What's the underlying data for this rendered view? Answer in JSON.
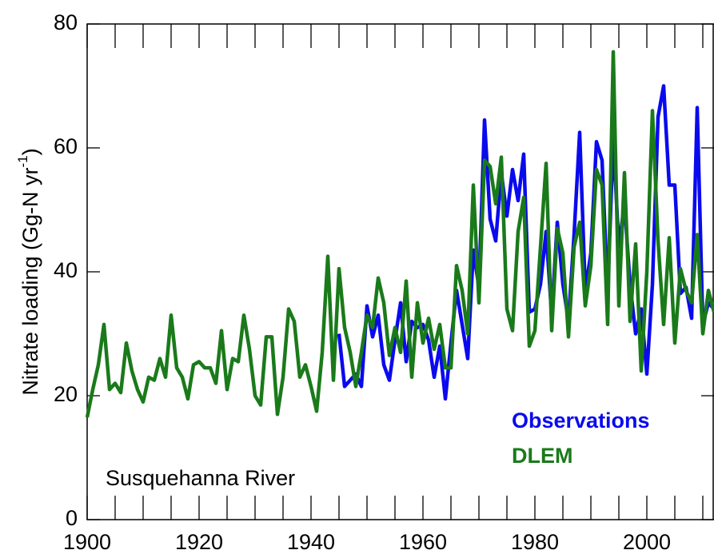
{
  "chart_data": {
    "type": "line",
    "ylabel": [
      "Nitrate loading (Gg-N yr",
      "-1",
      ")"
    ],
    "annotation": "Susquehanna River",
    "x": [
      1900,
      1901,
      1902,
      1903,
      1904,
      1905,
      1906,
      1907,
      1908,
      1909,
      1910,
      1911,
      1912,
      1913,
      1914,
      1915,
      1916,
      1917,
      1918,
      1919,
      1920,
      1921,
      1922,
      1923,
      1924,
      1925,
      1926,
      1927,
      1928,
      1929,
      1930,
      1931,
      1932,
      1933,
      1934,
      1935,
      1936,
      1937,
      1938,
      1939,
      1940,
      1941,
      1942,
      1943,
      1944,
      1945,
      1946,
      1947,
      1948,
      1949,
      1950,
      1951,
      1952,
      1953,
      1954,
      1955,
      1956,
      1957,
      1958,
      1959,
      1960,
      1961,
      1962,
      1963,
      1964,
      1965,
      1966,
      1967,
      1968,
      1969,
      1970,
      1971,
      1972,
      1973,
      1974,
      1975,
      1976,
      1977,
      1978,
      1979,
      1980,
      1981,
      1982,
      1983,
      1984,
      1985,
      1986,
      1987,
      1988,
      1989,
      1990,
      1991,
      1992,
      1993,
      1994,
      1995,
      1996,
      1997,
      1998,
      1999,
      2000,
      2001,
      2002,
      2003,
      2004,
      2005,
      2006,
      2007,
      2008,
      2009,
      2010,
      2011,
      2012
    ],
    "series": [
      {
        "name": "Observations",
        "color": "#0a0aee",
        "values": [
          null,
          null,
          null,
          null,
          null,
          null,
          null,
          null,
          null,
          null,
          null,
          null,
          null,
          null,
          null,
          null,
          null,
          null,
          null,
          null,
          null,
          null,
          null,
          null,
          null,
          null,
          null,
          null,
          null,
          null,
          null,
          null,
          null,
          null,
          null,
          null,
          null,
          null,
          null,
          null,
          null,
          null,
          null,
          null,
          null,
          30,
          21.5,
          22.5,
          23.5,
          21.5,
          34.5,
          29.5,
          33,
          25,
          22.5,
          29,
          35,
          25.5,
          32,
          31,
          31.5,
          29,
          23,
          28,
          19.5,
          28.5,
          37,
          31.5,
          26,
          43.5,
          37.5,
          64.5,
          48.5,
          45,
          56,
          49,
          56.5,
          51.5,
          59,
          33.5,
          34,
          38,
          46.5,
          33,
          48,
          38,
          32,
          46,
          62.5,
          37,
          43,
          61,
          58,
          36.5,
          61.5,
          44,
          51,
          38,
          30,
          34,
          23.5,
          38,
          65,
          70,
          54,
          54,
          36.5,
          37.5,
          32.5,
          66.5,
          31.5,
          35,
          34
        ]
      },
      {
        "name": "DLEM",
        "color": "#1a7a1a",
        "values": [
          16.5,
          21,
          25,
          31.5,
          21,
          22,
          20.5,
          28.5,
          24,
          21,
          19,
          23,
          22.5,
          26,
          23,
          33,
          24.5,
          23,
          19.5,
          25,
          25.5,
          24.5,
          24.5,
          22,
          30.5,
          21,
          26,
          25.5,
          33,
          27.5,
          20,
          18.5,
          29.5,
          29.5,
          17,
          23,
          34,
          32,
          23,
          25,
          21.5,
          17.5,
          27,
          42.5,
          22.5,
          40.5,
          31,
          27,
          21.5,
          27,
          33,
          31,
          39,
          35,
          26.5,
          31,
          27,
          38.5,
          23,
          35,
          28.5,
          32.5,
          27.5,
          31.5,
          24.5,
          24.5,
          41,
          37,
          30,
          54,
          35,
          58,
          57,
          51,
          58.5,
          34,
          30.5,
          46.5,
          52,
          28,
          30.5,
          44,
          57.5,
          30.5,
          47,
          43,
          29.5,
          44,
          48,
          34.5,
          41,
          56.5,
          54,
          31.5,
          75.5,
          34.5,
          56,
          32,
          44.5,
          24,
          40,
          66,
          45,
          31.5,
          45.5,
          28.5,
          40.5,
          37,
          35,
          46,
          30,
          37,
          33.5
        ]
      }
    ],
    "xlim": [
      1900,
      2012
    ],
    "ylim": [
      0,
      80
    ],
    "xticks": [
      1900,
      1920,
      1940,
      1960,
      1980,
      2000
    ],
    "xminorticks": [
      1905,
      1910,
      1915,
      1925,
      1930,
      1935,
      1945,
      1950,
      1955,
      1965,
      1970,
      1975,
      1985,
      1990,
      1995,
      2005,
      2010
    ],
    "yticks": [
      0,
      20,
      40,
      60,
      80
    ]
  }
}
